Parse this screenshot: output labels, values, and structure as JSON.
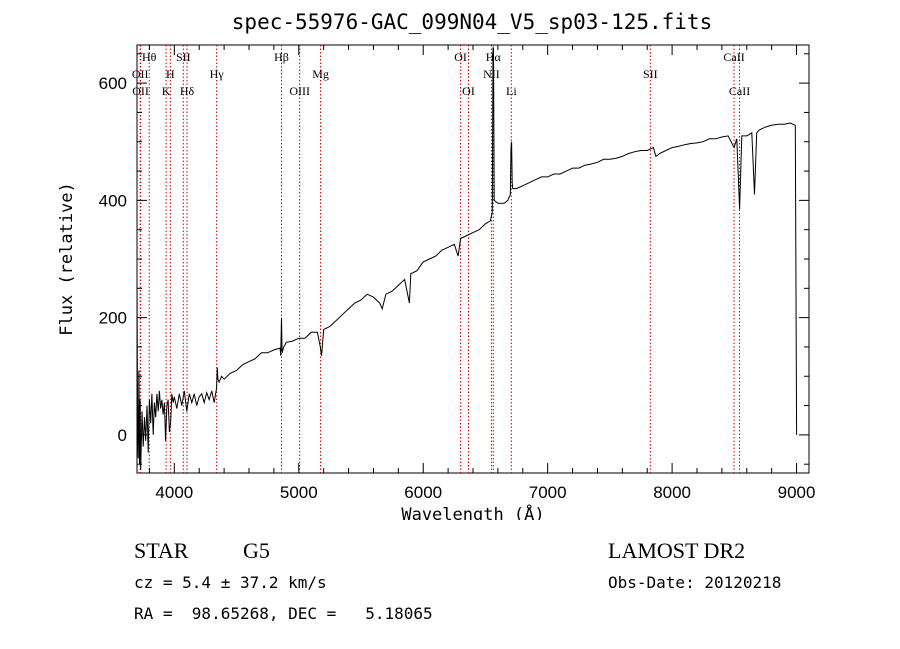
{
  "chart_data": {
    "type": "line",
    "title": "spec-55976-GAC_099N04_V5_sp03-125.fits",
    "xlabel": "Wavelength (Å)",
    "ylabel": "Flux (relative)",
    "xlim": [
      3700,
      9100
    ],
    "ylim": [
      -65,
      665
    ],
    "x_ticks": [
      4000,
      5000,
      6000,
      7000,
      8000,
      9000
    ],
    "y_ticks": [
      0,
      200,
      400,
      600
    ],
    "grid": false,
    "series": [
      {
        "color": "#000000",
        "points": [
          [
            3700,
            260
          ],
          [
            3705,
            20
          ],
          [
            3710,
            -40
          ],
          [
            3715,
            110
          ],
          [
            3720,
            -50
          ],
          [
            3725,
            60
          ],
          [
            3730,
            -60
          ],
          [
            3740,
            40
          ],
          [
            3750,
            -20
          ],
          [
            3760,
            30
          ],
          [
            3770,
            -10
          ],
          [
            3780,
            50
          ],
          [
            3790,
            -30
          ],
          [
            3800,
            60
          ],
          [
            3810,
            20
          ],
          [
            3820,
            70
          ],
          [
            3830,
            0
          ],
          [
            3840,
            55
          ],
          [
            3850,
            30
          ],
          [
            3860,
            70
          ],
          [
            3870,
            40
          ],
          [
            3880,
            75
          ],
          [
            3890,
            45
          ],
          [
            3900,
            60
          ],
          [
            3910,
            35
          ],
          [
            3920,
            55
          ],
          [
            3930,
            -10
          ],
          [
            3940,
            50
          ],
          [
            3950,
            60
          ],
          [
            3960,
            5
          ],
          [
            3970,
            20
          ],
          [
            3980,
            70
          ],
          [
            3990,
            55
          ],
          [
            4000,
            65
          ],
          [
            4020,
            45
          ],
          [
            4040,
            70
          ],
          [
            4060,
            50
          ],
          [
            4080,
            75
          ],
          [
            4100,
            40
          ],
          [
            4120,
            70
          ],
          [
            4140,
            55
          ],
          [
            4160,
            70
          ],
          [
            4180,
            50
          ],
          [
            4200,
            65
          ],
          [
            4220,
            70
          ],
          [
            4240,
            55
          ],
          [
            4260,
            72
          ],
          [
            4280,
            60
          ],
          [
            4300,
            75
          ],
          [
            4320,
            55
          ],
          [
            4340,
            80
          ],
          [
            4345,
            115
          ],
          [
            4350,
            95
          ],
          [
            4360,
            90
          ],
          [
            4380,
            100
          ],
          [
            4400,
            95
          ],
          [
            4450,
            105
          ],
          [
            4500,
            110
          ],
          [
            4550,
            120
          ],
          [
            4600,
            125
          ],
          [
            4650,
            130
          ],
          [
            4700,
            140
          ],
          [
            4750,
            140
          ],
          [
            4800,
            145
          ],
          [
            4850,
            148
          ],
          [
            4855,
            135
          ],
          [
            4861,
            200
          ],
          [
            4866,
            140
          ],
          [
            4880,
            150
          ],
          [
            4900,
            158
          ],
          [
            4950,
            160
          ],
          [
            5000,
            165
          ],
          [
            5050,
            165
          ],
          [
            5100,
            175
          ],
          [
            5150,
            175
          ],
          [
            5173,
            150
          ],
          [
            5183,
            135
          ],
          [
            5200,
            180
          ],
          [
            5250,
            185
          ],
          [
            5300,
            195
          ],
          [
            5350,
            205
          ],
          [
            5400,
            215
          ],
          [
            5450,
            225
          ],
          [
            5500,
            230
          ],
          [
            5550,
            240
          ],
          [
            5600,
            235
          ],
          [
            5650,
            225
          ],
          [
            5670,
            215
          ],
          [
            5700,
            240
          ],
          [
            5750,
            245
          ],
          [
            5800,
            255
          ],
          [
            5850,
            265
          ],
          [
            5889,
            225
          ],
          [
            5900,
            275
          ],
          [
            5950,
            280
          ],
          [
            6000,
            295
          ],
          [
            6050,
            300
          ],
          [
            6100,
            305
          ],
          [
            6150,
            315
          ],
          [
            6200,
            320
          ],
          [
            6250,
            325
          ],
          [
            6280,
            305
          ],
          [
            6300,
            335
          ],
          [
            6350,
            340
          ],
          [
            6400,
            345
          ],
          [
            6450,
            350
          ],
          [
            6500,
            360
          ],
          [
            6540,
            365
          ],
          [
            6555,
            380
          ],
          [
            6561,
            660
          ],
          [
            6565,
            660
          ],
          [
            6570,
            400
          ],
          [
            6600,
            395
          ],
          [
            6650,
            395
          ],
          [
            6680,
            400
          ],
          [
            6700,
            410
          ],
          [
            6705,
            490
          ],
          [
            6710,
            500
          ],
          [
            6715,
            430
          ],
          [
            6720,
            420
          ],
          [
            6750,
            420
          ],
          [
            6800,
            425
          ],
          [
            6850,
            430
          ],
          [
            6900,
            435
          ],
          [
            6950,
            440
          ],
          [
            7000,
            440
          ],
          [
            7050,
            445
          ],
          [
            7100,
            445
          ],
          [
            7150,
            450
          ],
          [
            7200,
            455
          ],
          [
            7250,
            455
          ],
          [
            7300,
            460
          ],
          [
            7350,
            462
          ],
          [
            7400,
            465
          ],
          [
            7450,
            470
          ],
          [
            7500,
            470
          ],
          [
            7550,
            472
          ],
          [
            7600,
            475
          ],
          [
            7650,
            480
          ],
          [
            7700,
            483
          ],
          [
            7750,
            485
          ],
          [
            7800,
            485
          ],
          [
            7850,
            490
          ],
          [
            7870,
            475
          ],
          [
            7900,
            480
          ],
          [
            7950,
            485
          ],
          [
            8000,
            490
          ],
          [
            8050,
            492
          ],
          [
            8100,
            495
          ],
          [
            8150,
            497
          ],
          [
            8200,
            498
          ],
          [
            8250,
            500
          ],
          [
            8300,
            505
          ],
          [
            8350,
            505
          ],
          [
            8400,
            508
          ],
          [
            8450,
            510
          ],
          [
            8498,
            490
          ],
          [
            8520,
            505
          ],
          [
            8542,
            385
          ],
          [
            8560,
            510
          ],
          [
            8600,
            510
          ],
          [
            8640,
            515
          ],
          [
            8662,
            410
          ],
          [
            8680,
            515
          ],
          [
            8700,
            520
          ],
          [
            8750,
            525
          ],
          [
            8800,
            528
          ],
          [
            8850,
            530
          ],
          [
            8900,
            530
          ],
          [
            8950,
            532
          ],
          [
            8990,
            528
          ],
          [
            9000,
            0
          ]
        ]
      }
    ],
    "lines": [
      {
        "wavelength": 3726,
        "label": "OII",
        "label_row": 2
      },
      {
        "wavelength": 3729,
        "label": "OII",
        "label_row": 3
      },
      {
        "wavelength": 3798,
        "label": "Hθ",
        "label_row": 1
      },
      {
        "wavelength": 3934,
        "label": "K",
        "label_row": 3
      },
      {
        "wavelength": 3968,
        "label": "H",
        "label_row": 2
      },
      {
        "wavelength": 4072,
        "label": "SII",
        "label_row": 1
      },
      {
        "wavelength": 4102,
        "label": "Hδ",
        "label_row": 3
      },
      {
        "wavelength": 4340,
        "label": "Hγ",
        "label_row": 2
      },
      {
        "wavelength": 4861,
        "label": "Hβ",
        "label_row": 1
      },
      {
        "wavelength": 5007,
        "label": "OIII",
        "label_row": 3
      },
      {
        "wavelength": 5175,
        "label": "Mg",
        "label_row": 2
      },
      {
        "wavelength": 6300,
        "label": "OI",
        "label_row": 1
      },
      {
        "wavelength": 6364,
        "label": "OI",
        "label_row": 3
      },
      {
        "wavelength": 6548,
        "label": "NII",
        "label_row": 2
      },
      {
        "wavelength": 6563,
        "label": "Hα",
        "label_row": 1
      },
      {
        "wavelength": 6708,
        "label": "Li",
        "label_row": 3
      },
      {
        "wavelength": 7825,
        "label": "SII",
        "label_row": 2
      },
      {
        "wavelength": 8498,
        "label": "CaII",
        "label_row": 1
      },
      {
        "wavelength": 8542,
        "label": "CaII",
        "label_row": 3
      }
    ]
  },
  "footer": {
    "class": "STAR",
    "subclass": "G5",
    "survey": "LAMOST DR2",
    "redshift": "cz = 5.4 ± 37.2 km/s",
    "obs_date": "Obs-Date: 20120218",
    "coords": "RA =  98.65268, DEC =   5.18065"
  },
  "colors": {
    "spectrum": "#000000",
    "line_markers": "#cc0000",
    "axes": "#000000"
  }
}
